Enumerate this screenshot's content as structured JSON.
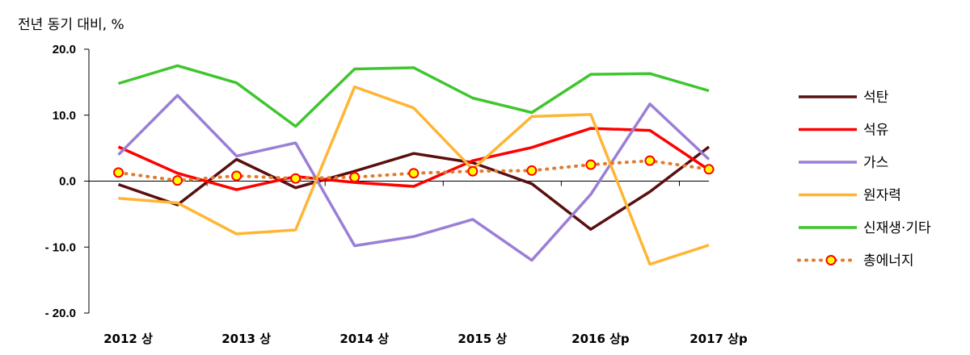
{
  "chart_data": {
    "type": "line",
    "ylabel": "전년 동기 대비, %",
    "ylim": [
      -20,
      20
    ],
    "yticks": [
      "20.0",
      "10.0",
      "0.0",
      "- 10.0",
      "- 20.0"
    ],
    "yticks_values": [
      20,
      10,
      0,
      -10,
      -20
    ],
    "x_tick_labels": [
      "2012 상",
      "2013 상",
      "2014 상",
      "2015 상",
      "2016 상p",
      "2017 상p"
    ],
    "x_tick_indices": [
      0,
      2,
      4,
      6,
      8,
      10
    ],
    "point_count": 11,
    "legend_position": "right",
    "series": [
      {
        "name": "석탄",
        "color": "#5a0f0f",
        "style": "solid",
        "values": [
          -0.5,
          -3.6,
          3.3,
          -1.0,
          1.5,
          4.2,
          2.8,
          -0.4,
          -7.3,
          -1.6,
          5.2
        ]
      },
      {
        "name": "석유",
        "color": "#ff0000",
        "style": "solid",
        "values": [
          5.2,
          1.2,
          -1.3,
          0.7,
          -0.2,
          -0.8,
          3.1,
          5.1,
          8.0,
          7.7,
          1.7
        ]
      },
      {
        "name": "가스",
        "color": "#9b7ed6",
        "style": "solid",
        "values": [
          4.0,
          13.0,
          3.8,
          5.8,
          -9.8,
          -8.4,
          -5.8,
          -12.0,
          -2.0,
          11.7,
          3.3
        ]
      },
      {
        "name": "원자력",
        "color": "#ffb534",
        "style": "solid",
        "values": [
          -2.6,
          -3.3,
          -8.0,
          -7.4,
          14.3,
          11.1,
          1.8,
          9.8,
          10.1,
          -12.6,
          -9.7
        ]
      },
      {
        "name": "신재생·기타",
        "color": "#3fc62e",
        "style": "solid",
        "values": [
          14.8,
          17.5,
          14.9,
          8.3,
          17.0,
          17.2,
          12.6,
          10.4,
          16.2,
          16.3,
          13.7
        ]
      },
      {
        "name": "총에너지",
        "color": "#e07a2e",
        "style": "dotted-marker",
        "marker_fill": "#ffff00",
        "marker_stroke": "#ff0000",
        "values": [
          1.3,
          0.1,
          0.8,
          0.4,
          0.6,
          1.2,
          1.5,
          1.6,
          2.5,
          3.1,
          1.8
        ]
      }
    ]
  }
}
